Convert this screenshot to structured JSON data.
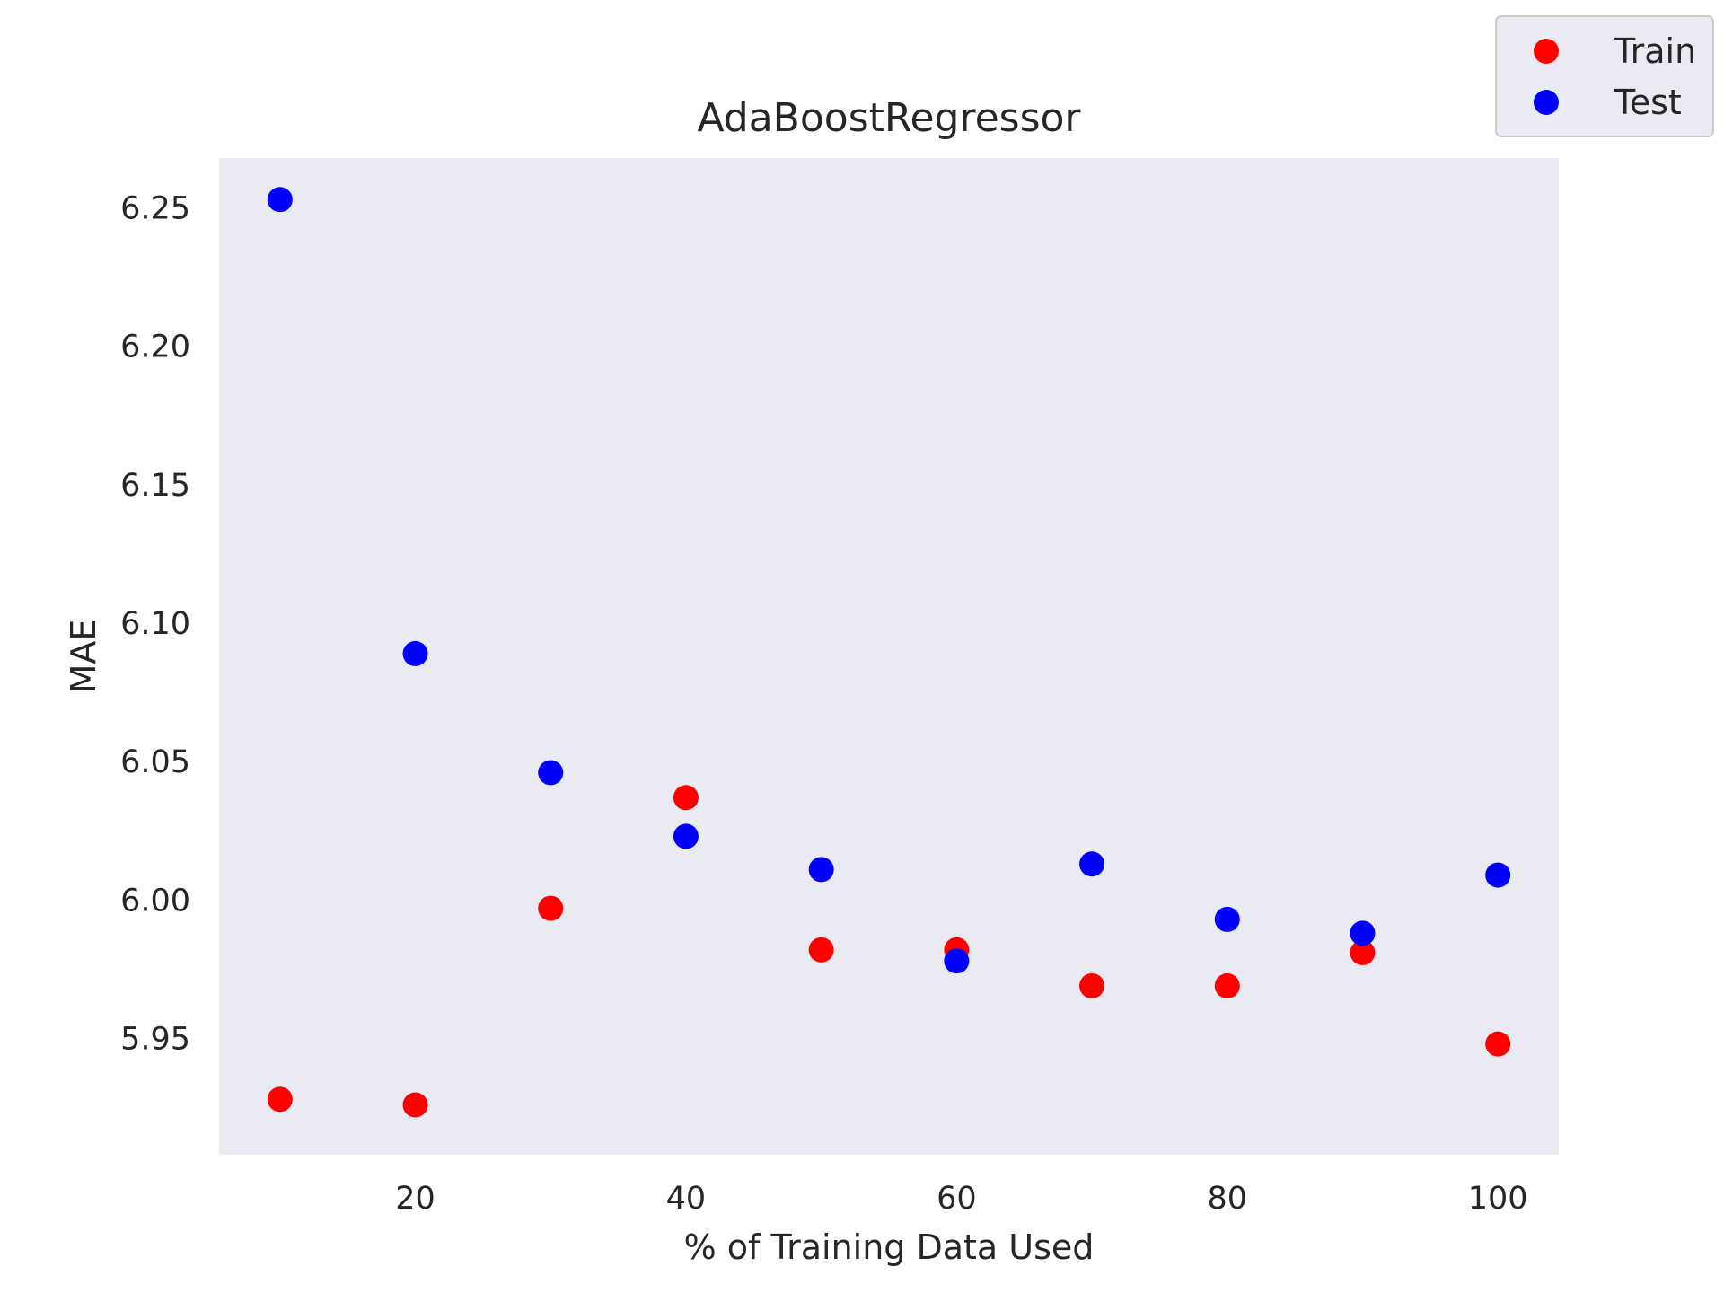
{
  "chart_data": {
    "type": "scatter",
    "title": "AdaBoostRegressor",
    "xlabel": "% of Training Data Used",
    "ylabel": "MAE",
    "x": [
      10,
      20,
      30,
      40,
      50,
      60,
      70,
      80,
      90,
      100
    ],
    "series": [
      {
        "name": "Train",
        "color": "#ff0000",
        "values": [
          5.928,
          5.926,
          5.997,
          6.037,
          5.982,
          5.982,
          5.969,
          5.969,
          5.981,
          5.948
        ]
      },
      {
        "name": "Test",
        "color": "#0000ff",
        "values": [
          6.253,
          6.089,
          6.046,
          6.023,
          6.011,
          5.978,
          6.013,
          5.993,
          5.988,
          6.009
        ]
      }
    ],
    "xlim": [
      5.5,
      104.5
    ],
    "ylim": [
      5.908,
      6.268
    ],
    "xticks": [
      "20",
      "40",
      "60",
      "80",
      "100"
    ],
    "xtick_values": [
      20,
      40,
      60,
      80,
      100
    ],
    "yticks": [
      "5.95",
      "6.00",
      "6.05",
      "6.10",
      "6.15",
      "6.20",
      "6.25"
    ],
    "ytick_values": [
      5.95,
      6.0,
      6.05,
      6.1,
      6.15,
      6.2,
      6.25
    ],
    "grid": false,
    "legend_position": "top-right",
    "plot_background": "#eaeaf2"
  }
}
